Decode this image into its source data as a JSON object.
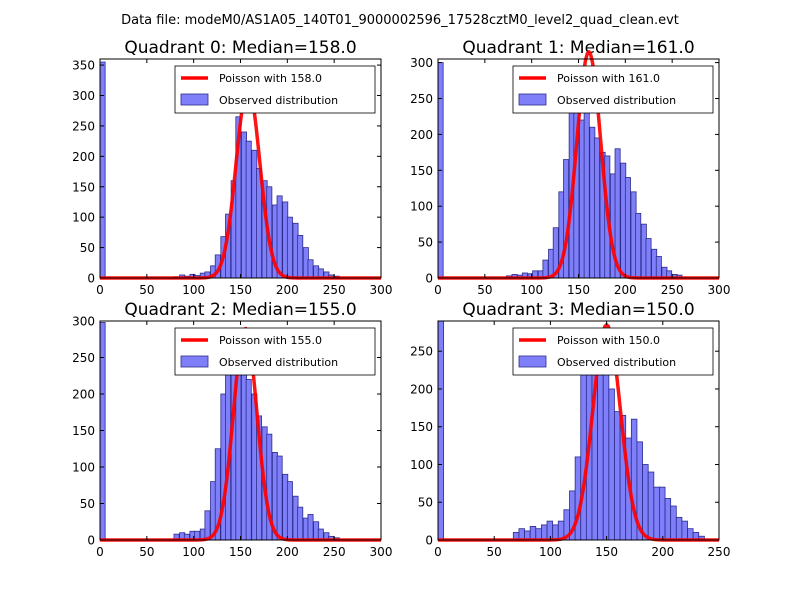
{
  "suptitle": "Data file: modeM0/AS1A05_140T01_9000002596_17528cztM0_level2_quad_clean.evt",
  "colors": {
    "bar_fill": "#7f7ff9",
    "bar_edge": "#2c2c8c",
    "poisson": "#ff0000"
  },
  "chart_data": [
    {
      "type": "bar",
      "title": "Quadrant 0: Median=158.0",
      "xlim": [
        0,
        300
      ],
      "ylim": [
        0,
        360
      ],
      "xticks": [
        "0",
        "50",
        "100",
        "150",
        "200",
        "250",
        "300"
      ],
      "yticks": [
        "0",
        "50",
        "100",
        "150",
        "200",
        "250",
        "300",
        "350"
      ],
      "ytick_values": [
        0,
        50,
        100,
        150,
        200,
        250,
        300,
        350
      ],
      "bin_width": 5.5,
      "bins": [
        [
          0,
          355
        ],
        [
          79,
          2
        ],
        [
          85,
          5
        ],
        [
          90,
          3
        ],
        [
          96,
          6
        ],
        [
          101,
          4
        ],
        [
          107,
          8
        ],
        [
          112,
          10
        ],
        [
          118,
          20
        ],
        [
          123,
          38
        ],
        [
          129,
          68
        ],
        [
          134,
          105
        ],
        [
          140,
          160
        ],
        [
          145,
          265
        ],
        [
          151,
          240
        ],
        [
          156,
          225
        ],
        [
          162,
          210
        ],
        [
          167,
          180
        ],
        [
          173,
          160
        ],
        [
          178,
          150
        ],
        [
          184,
          120
        ],
        [
          189,
          135
        ],
        [
          195,
          125
        ],
        [
          200,
          100
        ],
        [
          206,
          90
        ],
        [
          211,
          70
        ],
        [
          217,
          50
        ],
        [
          222,
          30
        ],
        [
          228,
          20
        ],
        [
          233,
          15
        ],
        [
          239,
          10
        ],
        [
          244,
          5
        ],
        [
          250,
          3
        ]
      ],
      "legend": [
        {
          "label": "Poisson with 158.0",
          "kind": "line"
        },
        {
          "label": "Observed distribution",
          "kind": "patch"
        }
      ],
      "poisson": {
        "mean": 158,
        "peak": 315
      }
    },
    {
      "type": "bar",
      "title": "Quadrant 1: Median=161.0",
      "xlim": [
        0,
        300
      ],
      "ylim": [
        0,
        305
      ],
      "xticks": [
        "0",
        "50",
        "100",
        "150",
        "200",
        "250",
        "300"
      ],
      "yticks": [
        "0",
        "50",
        "100",
        "150",
        "200",
        "250",
        "300"
      ],
      "ytick_values": [
        0,
        50,
        100,
        150,
        200,
        250,
        300
      ],
      "bin_width": 5.5,
      "bins": [
        [
          0,
          300
        ],
        [
          73,
          3
        ],
        [
          79,
          5
        ],
        [
          85,
          4
        ],
        [
          90,
          7
        ],
        [
          96,
          6
        ],
        [
          101,
          10
        ],
        [
          107,
          10
        ],
        [
          112,
          25
        ],
        [
          118,
          40
        ],
        [
          123,
          70
        ],
        [
          129,
          120
        ],
        [
          134,
          165
        ],
        [
          140,
          280
        ],
        [
          145,
          260
        ],
        [
          151,
          220
        ],
        [
          156,
          230
        ],
        [
          162,
          210
        ],
        [
          167,
          195
        ],
        [
          173,
          175
        ],
        [
          178,
          170
        ],
        [
          184,
          145
        ],
        [
          189,
          180
        ],
        [
          195,
          160
        ],
        [
          200,
          140
        ],
        [
          206,
          120
        ],
        [
          211,
          90
        ],
        [
          217,
          75
        ],
        [
          222,
          55
        ],
        [
          228,
          40
        ],
        [
          233,
          30
        ],
        [
          239,
          15
        ],
        [
          244,
          10
        ],
        [
          250,
          5
        ],
        [
          255,
          4
        ]
      ],
      "legend": [
        {
          "label": "Poisson with 161.0",
          "kind": "line"
        },
        {
          "label": "Observed distribution",
          "kind": "patch"
        }
      ],
      "poisson": {
        "mean": 161,
        "peak": 315
      }
    },
    {
      "type": "bar",
      "title": "Quadrant 2: Median=155.0",
      "xlim": [
        0,
        300
      ],
      "ylim": [
        0,
        300
      ],
      "xticks": [
        "0",
        "50",
        "100",
        "150",
        "200",
        "250",
        "300"
      ],
      "yticks": [
        "0",
        "50",
        "100",
        "150",
        "200",
        "250",
        "300"
      ],
      "ytick_values": [
        0,
        50,
        100,
        150,
        200,
        250,
        300
      ],
      "bin_width": 5.5,
      "bins": [
        [
          0,
          298
        ],
        [
          79,
          8
        ],
        [
          85,
          10
        ],
        [
          90,
          8
        ],
        [
          96,
          12
        ],
        [
          101,
          12
        ],
        [
          107,
          15
        ],
        [
          112,
          40
        ],
        [
          118,
          80
        ],
        [
          123,
          125
        ],
        [
          129,
          200
        ],
        [
          134,
          235
        ],
        [
          140,
          258
        ],
        [
          145,
          290
        ],
        [
          151,
          250
        ],
        [
          156,
          220
        ],
        [
          162,
          200
        ],
        [
          167,
          170
        ],
        [
          173,
          155
        ],
        [
          178,
          145
        ],
        [
          184,
          120
        ],
        [
          189,
          115
        ],
        [
          195,
          90
        ],
        [
          200,
          80
        ],
        [
          206,
          60
        ],
        [
          211,
          45
        ],
        [
          217,
          30
        ],
        [
          222,
          35
        ],
        [
          228,
          25
        ],
        [
          233,
          15
        ],
        [
          239,
          10
        ],
        [
          244,
          5
        ],
        [
          250,
          3
        ]
      ],
      "legend": [
        {
          "label": "Poisson with 155.0",
          "kind": "line"
        },
        {
          "label": "Observed distribution",
          "kind": "patch"
        }
      ],
      "poisson": {
        "mean": 155,
        "peak": 290
      }
    },
    {
      "type": "bar",
      "title": "Quadrant 3: Median=150.0",
      "xlim": [
        0,
        250
      ],
      "ylim": [
        0,
        290
      ],
      "xticks": [
        "0",
        "50",
        "100",
        "150",
        "200",
        "250"
      ],
      "yticks": [
        "0",
        "50",
        "100",
        "150",
        "200",
        "250"
      ],
      "ytick_values": [
        0,
        50,
        100,
        150,
        200,
        250
      ],
      "bin_width": 5,
      "bins": [
        [
          0,
          290
        ],
        [
          67,
          10
        ],
        [
          72,
          15
        ],
        [
          77,
          12
        ],
        [
          82,
          18
        ],
        [
          87,
          15
        ],
        [
          92,
          20
        ],
        [
          97,
          25
        ],
        [
          102,
          20
        ],
        [
          107,
          25
        ],
        [
          112,
          40
        ],
        [
          117,
          65
        ],
        [
          122,
          110
        ],
        [
          127,
          220
        ],
        [
          132,
          250
        ],
        [
          137,
          270
        ],
        [
          142,
          240
        ],
        [
          147,
          230
        ],
        [
          152,
          200
        ],
        [
          157,
          170
        ],
        [
          162,
          165
        ],
        [
          167,
          135
        ],
        [
          172,
          160
        ],
        [
          177,
          130
        ],
        [
          182,
          100
        ],
        [
          187,
          90
        ],
        [
          192,
          70
        ],
        [
          197,
          70
        ],
        [
          202,
          55
        ],
        [
          207,
          45
        ],
        [
          212,
          30
        ],
        [
          217,
          25
        ],
        [
          222,
          15
        ],
        [
          227,
          10
        ],
        [
          232,
          5
        ]
      ],
      "legend": [
        {
          "label": "Poisson with 150.0",
          "kind": "line"
        },
        {
          "label": "Observed distribution",
          "kind": "patch"
        }
      ],
      "poisson": {
        "mean": 150,
        "peak": 285
      }
    }
  ]
}
